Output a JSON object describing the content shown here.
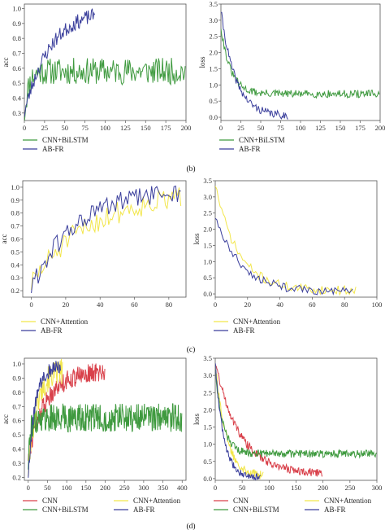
{
  "colors": {
    "CNN": "#d9414b",
    "CNN+Attention": "#f2e64a",
    "CNN+BiLSTM": "#3f9a3f",
    "AB-FR": "#3b3f9c",
    "frame": "#555555"
  },
  "panel_labels": [
    "(b)",
    "(c)",
    "(d)"
  ],
  "chart_data": [
    {
      "type": "line",
      "xlabel": "",
      "ylabel": "acc",
      "xlim": [
        0,
        200
      ],
      "ylim": [
        0.25,
        1.03
      ],
      "xticks": [
        0,
        25,
        50,
        75,
        100,
        125,
        150,
        175,
        200
      ],
      "yticks": [
        0.3,
        0.4,
        0.5,
        0.6,
        0.7,
        0.8,
        0.9,
        1.0
      ],
      "legend": [
        "CNN+BiLSTM",
        "AB-FR"
      ],
      "legend_cols": 1,
      "series": [
        {
          "name": "CNN+BiLSTM",
          "n": 200,
          "start": 0.28,
          "base": 0.58,
          "amp": 0.09,
          "tau": 5,
          "seed": 11
        },
        {
          "name": "AB-FR",
          "n": 88,
          "start": 0.3,
          "base": 1.0,
          "amp": 0.05,
          "tau": 32,
          "seed": 23
        }
      ]
    },
    {
      "type": "line",
      "xlabel": "",
      "ylabel": "loss",
      "xlim": [
        0,
        200
      ],
      "ylim": [
        -0.1,
        3.5
      ],
      "xticks": [
        0,
        25,
        50,
        75,
        100,
        125,
        150,
        175,
        200
      ],
      "yticks": [
        0.0,
        0.5,
        1.0,
        1.5,
        2.0,
        2.5,
        3.0,
        3.5
      ],
      "legend": [
        "CNN+BiLSTM",
        "AB-FR"
      ],
      "legend_cols": 1,
      "series": [
        {
          "name": "CNN+BiLSTM",
          "n": 200,
          "start": 2.8,
          "base": 0.72,
          "amp": 0.12,
          "tau": 12,
          "seed": 31
        },
        {
          "name": "AB-FR",
          "n": 85,
          "start": 3.3,
          "base": 0.02,
          "amp": 0.12,
          "tau": 18,
          "seed": 41
        }
      ]
    },
    {
      "type": "line",
      "xlabel": "",
      "ylabel": "acc",
      "xlim": [
        -5,
        90
      ],
      "ylim": [
        0.15,
        1.05
      ],
      "xticks": [
        0,
        20,
        40,
        60,
        80
      ],
      "yticks": [
        0.2,
        0.3,
        0.4,
        0.5,
        0.6,
        0.7,
        0.8,
        0.9,
        1.0
      ],
      "legend": [
        "CNN+Attention",
        "AB-FR"
      ],
      "legend_cols": 1,
      "series": [
        {
          "name": "CNN+Attention",
          "n": 88,
          "start": 0.25,
          "base": 0.97,
          "amp": 0.09,
          "tau": 34,
          "seed": 51
        },
        {
          "name": "AB-FR",
          "n": 88,
          "start": 0.22,
          "base": 0.99,
          "amp": 0.08,
          "tau": 26,
          "seed": 61
        }
      ]
    },
    {
      "type": "line",
      "xlabel": "",
      "ylabel": "loss",
      "xlim": [
        0,
        100
      ],
      "ylim": [
        -0.1,
        3.5
      ],
      "xticks": [
        0,
        20,
        40,
        60,
        80,
        100
      ],
      "yticks": [
        0.0,
        0.5,
        1.0,
        1.5,
        2.0,
        2.5,
        3.0,
        3.5
      ],
      "legend": [
        "CNN+Attention",
        "AB-FR"
      ],
      "legend_cols": 1,
      "series": [
        {
          "name": "CNN+Attention",
          "n": 88,
          "start": 3.4,
          "base": 0.1,
          "amp": 0.14,
          "tau": 14,
          "seed": 71
        },
        {
          "name": "AB-FR",
          "n": 86,
          "start": 2.4,
          "base": 0.05,
          "amp": 0.13,
          "tau": 16,
          "seed": 81
        }
      ]
    },
    {
      "type": "line",
      "xlabel": "",
      "ylabel": "acc",
      "xlim": [
        -10,
        410
      ],
      "ylim": [
        0.18,
        1.04
      ],
      "xticks": [
        0,
        50,
        100,
        150,
        200,
        250,
        300,
        350,
        400
      ],
      "yticks": [
        0.2,
        0.3,
        0.4,
        0.5,
        0.6,
        0.7,
        0.8,
        0.9,
        1.0
      ],
      "legend": [
        "CNN",
        "CNN+Attention",
        "CNN+BiLSTM",
        "AB-FR"
      ],
      "legend_cols": 2,
      "series": [
        {
          "name": "CNN",
          "n": 200,
          "start": 0.35,
          "base": 0.95,
          "amp": 0.07,
          "tau": 45,
          "seed": 91
        },
        {
          "name": "CNN+Attention",
          "n": 90,
          "start": 0.25,
          "base": 0.96,
          "amp": 0.09,
          "tau": 22,
          "seed": 101
        },
        {
          "name": "CNN+BiLSTM",
          "n": 400,
          "start": 0.3,
          "base": 0.62,
          "amp": 0.1,
          "tau": 6,
          "seed": 111
        },
        {
          "name": "AB-FR",
          "n": 85,
          "start": 0.22,
          "base": 0.99,
          "amp": 0.05,
          "tau": 18,
          "seed": 121
        }
      ]
    },
    {
      "type": "line",
      "xlabel": "",
      "ylabel": "loss",
      "xlim": [
        0,
        300
      ],
      "ylim": [
        -0.05,
        3.5
      ],
      "xticks": [
        0,
        50,
        100,
        150,
        200,
        250,
        300
      ],
      "yticks": [
        0.0,
        0.5,
        1.0,
        1.5,
        2.0,
        2.5,
        3.0,
        3.5
      ],
      "legend": [
        "CNN",
        "CNN+Attention",
        "CNN+BiLSTM",
        "AB-FR"
      ],
      "legend_cols": 2,
      "series": [
        {
          "name": "CNN",
          "n": 200,
          "start": 3.4,
          "base": 0.12,
          "amp": 0.12,
          "tau": 45,
          "seed": 131
        },
        {
          "name": "CNN+Attention",
          "n": 90,
          "start": 3.4,
          "base": 0.05,
          "amp": 0.13,
          "tau": 20,
          "seed": 141
        },
        {
          "name": "CNN+BiLSTM",
          "n": 300,
          "start": 3.2,
          "base": 0.72,
          "amp": 0.11,
          "tau": 14,
          "seed": 151
        },
        {
          "name": "AB-FR",
          "n": 85,
          "start": 3.4,
          "base": 0.03,
          "amp": 0.1,
          "tau": 15,
          "seed": 161
        }
      ]
    }
  ]
}
